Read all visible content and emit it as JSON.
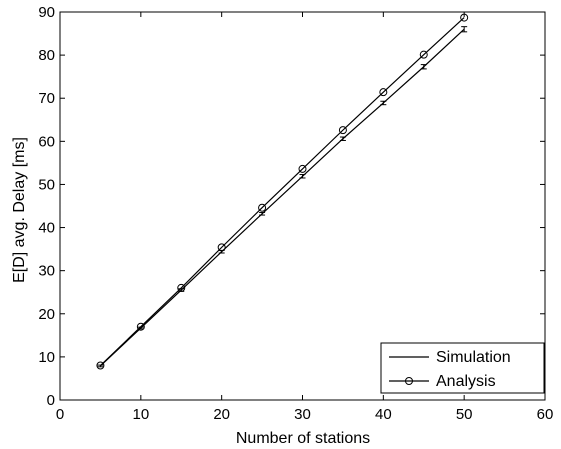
{
  "chart_data": {
    "type": "line",
    "xlabel": "Number of stations",
    "ylabel": "E[D] avg. Delay [ms]",
    "xlim": [
      0,
      60
    ],
    "ylim": [
      0,
      90
    ],
    "xticks": [
      0,
      10,
      20,
      30,
      40,
      50,
      60
    ],
    "yticks": [
      0,
      10,
      20,
      30,
      40,
      50,
      60,
      70,
      80,
      90
    ],
    "grid": false,
    "legend_position": "bottom-right",
    "x": [
      5,
      10,
      15,
      20,
      25,
      30,
      35,
      40,
      45,
      50
    ],
    "series": [
      {
        "name": "Simulation",
        "marker": "none",
        "values": [
          7.9,
          16.7,
          25.5,
          34.4,
          43.2,
          51.9,
          60.6,
          68.9,
          77.3,
          86.0
        ],
        "error": [
          0.2,
          0.2,
          0.3,
          0.3,
          0.3,
          0.4,
          0.4,
          0.4,
          0.5,
          0.6
        ]
      },
      {
        "name": "Analysis",
        "marker": "circle",
        "values": [
          8.0,
          17.0,
          26.0,
          35.4,
          44.6,
          53.6,
          62.6,
          71.4,
          80.1,
          88.7
        ]
      }
    ]
  }
}
